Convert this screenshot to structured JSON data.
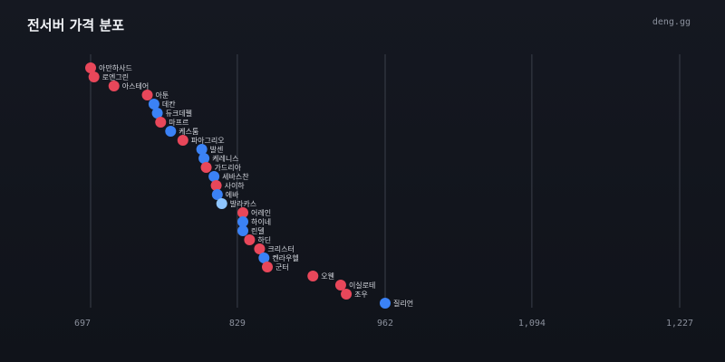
{
  "header": {
    "title": "전서버 가격 분포",
    "brand": "deng.gg"
  },
  "colors": {
    "red": "#e8475a",
    "blue": "#3b82f6",
    "light_blue": "#8ec5ff",
    "grid": "#3a3f4a"
  },
  "chart_data": {
    "type": "scatter",
    "title": "전서버 가격 분포",
    "x_ticks": [
      {
        "value": 697,
        "label": "697"
      },
      {
        "value": 829,
        "label": "829"
      },
      {
        "value": 962,
        "label": "962"
      },
      {
        "value": 1094,
        "label": "1,094"
      },
      {
        "value": 1227,
        "label": "1,227"
      }
    ],
    "xlim": [
      697,
      1227
    ],
    "grid": true,
    "points": [
      {
        "label": "아만하사드",
        "x": 697,
        "color": "red"
      },
      {
        "label": "로엔그린",
        "x": 700,
        "color": "red"
      },
      {
        "label": "아스테어",
        "x": 718,
        "color": "red"
      },
      {
        "label": "아툰",
        "x": 748,
        "color": "red"
      },
      {
        "label": "데칸",
        "x": 754,
        "color": "blue"
      },
      {
        "label": "듀크데펠",
        "x": 757,
        "color": "blue"
      },
      {
        "label": "마프르",
        "x": 760,
        "color": "red"
      },
      {
        "label": "케스툼",
        "x": 769,
        "color": "blue"
      },
      {
        "label": "파아그리오",
        "x": 780,
        "color": "red"
      },
      {
        "label": "발센",
        "x": 797,
        "color": "blue"
      },
      {
        "label": "케레니스",
        "x": 799,
        "color": "blue"
      },
      {
        "label": "가드리아",
        "x": 801,
        "color": "red"
      },
      {
        "label": "세바스찬",
        "x": 808,
        "color": "blue"
      },
      {
        "label": "사이하",
        "x": 810,
        "color": "red"
      },
      {
        "label": "에바",
        "x": 811,
        "color": "blue"
      },
      {
        "label": "발라카스",
        "x": 815,
        "color": "light_blue"
      },
      {
        "label": "어레인",
        "x": 834,
        "color": "red"
      },
      {
        "label": "하이네",
        "x": 834,
        "color": "blue"
      },
      {
        "label": "린델",
        "x": 834,
        "color": "blue"
      },
      {
        "label": "하딘",
        "x": 840,
        "color": "red"
      },
      {
        "label": "크리스터",
        "x": 849,
        "color": "red"
      },
      {
        "label": "켄라우헬",
        "x": 853,
        "color": "blue"
      },
      {
        "label": "군터",
        "x": 856,
        "color": "red"
      },
      {
        "label": "오웬",
        "x": 897,
        "color": "red"
      },
      {
        "label": "이실로테",
        "x": 922,
        "color": "red"
      },
      {
        "label": "조우",
        "x": 927,
        "color": "red"
      },
      {
        "label": "질리언",
        "x": 962,
        "color": "blue"
      }
    ]
  }
}
